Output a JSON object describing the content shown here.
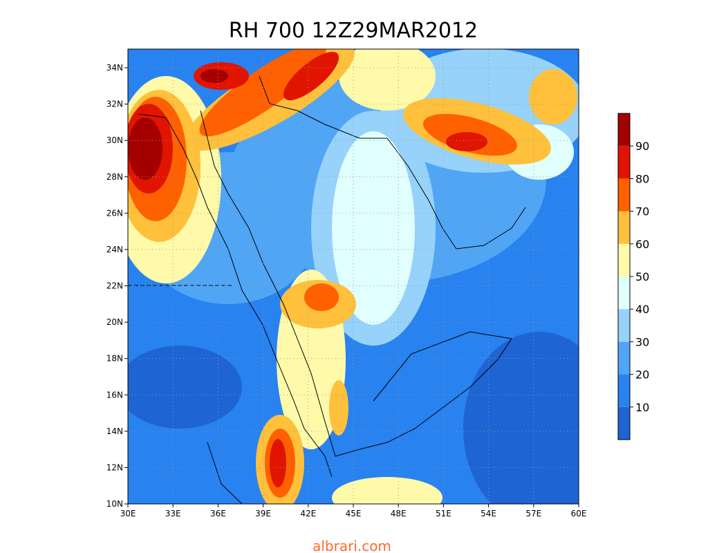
{
  "title": "RH 700 12Z29MAR2012",
  "x_ticks": [
    {
      "value": 30,
      "label": "30E"
    },
    {
      "value": 33,
      "label": "33E"
    },
    {
      "value": 36,
      "label": "36E"
    },
    {
      "value": 39,
      "label": "39E"
    },
    {
      "value": 42,
      "label": "42E"
    },
    {
      "value": 45,
      "label": "45E"
    },
    {
      "value": 48,
      "label": "48E"
    },
    {
      "value": 51,
      "label": "51E"
    },
    {
      "value": 54,
      "label": "54E"
    },
    {
      "value": 57,
      "label": "57E"
    },
    {
      "value": 60,
      "label": "60E"
    }
  ],
  "y_ticks": [
    {
      "value": 10,
      "label": "10N"
    },
    {
      "value": 12,
      "label": "12N"
    },
    {
      "value": 14,
      "label": "14N"
    },
    {
      "value": 16,
      "label": "16N"
    },
    {
      "value": 18,
      "label": "18N"
    },
    {
      "value": 20,
      "label": "20N"
    },
    {
      "value": 22,
      "label": "22N"
    },
    {
      "value": 24,
      "label": "24N"
    },
    {
      "value": 26,
      "label": "26N"
    },
    {
      "value": 28,
      "label": "28N"
    },
    {
      "value": 30,
      "label": "30N"
    },
    {
      "value": 32,
      "label": "32N"
    },
    {
      "value": 34,
      "label": "34N"
    }
  ],
  "colorbar": {
    "levels": [
      10,
      20,
      30,
      40,
      50,
      60,
      70,
      80,
      90
    ],
    "colors": [
      "#1e64d2",
      "#2882f0",
      "#50a5f5",
      "#96d2fa",
      "#e1ffff",
      "#fffaaa",
      "#ffc03c",
      "#ff6000",
      "#e11400",
      "#a50000"
    ]
  },
  "watermark": "albrari.com"
}
